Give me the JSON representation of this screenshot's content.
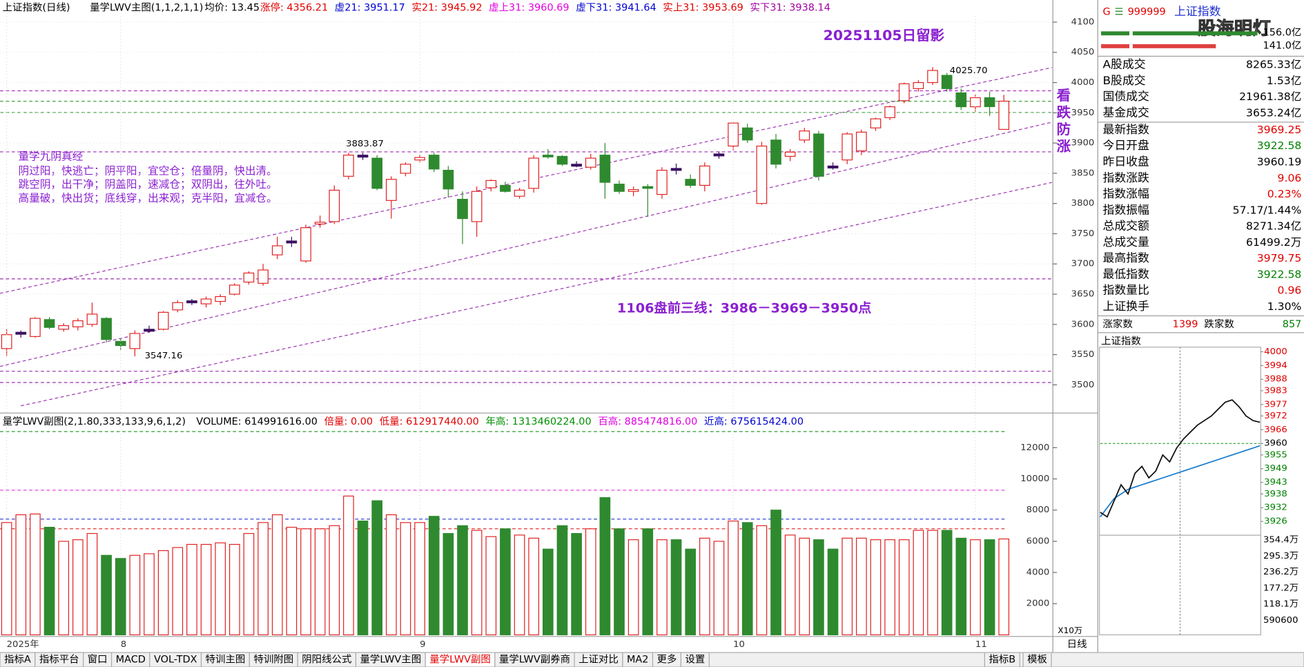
{
  "header": {
    "title": "上证指数(日线)",
    "indicator": "量学LWV主图(1,1,2,1,1)",
    "avg": "均价: 13.45",
    "items": [
      {
        "text": "涨停: 4356.21",
        "color": "#e00000"
      },
      {
        "text": "虚21: 3951.17",
        "color": "#0000d0"
      },
      {
        "text": "实21: 3945.92",
        "color": "#e00000"
      },
      {
        "text": "虚上31: 3960.69",
        "color": "#e000e0"
      },
      {
        "text": "虚下31: 3941.64",
        "color": "#0000d0"
      },
      {
        "text": "实上31: 3953.69",
        "color": "#e00000"
      },
      {
        "text": "实下31: 3938.14",
        "color": "#a000a0"
      }
    ]
  },
  "volume_header": {
    "indicator": "量学LWV副图(2,1.80,333,133,9,6,1,2)",
    "items": [
      {
        "text": "VOLUME: 614991616.00",
        "color": "#000000"
      },
      {
        "text": "倍量: 0.00",
        "color": "#e00000"
      },
      {
        "text": "低量: 612917440.00",
        "color": "#e00000"
      },
      {
        "text": "年高: 1313460224.00",
        "color": "#009000"
      },
      {
        "text": "百高: 885474816.00",
        "color": "#e000e0"
      },
      {
        "text": "近高: 675615424.00",
        "color": "#0000d0"
      }
    ]
  },
  "price_chart": {
    "type": "candlestick",
    "ylim": [
      3460,
      4110
    ],
    "yticks": [
      3500,
      3550,
      3600,
      3650,
      3700,
      3750,
      3800,
      3850,
      3900,
      3950,
      4000,
      4050,
      4100
    ],
    "up_color": "#e02020",
    "down_color": "#2f8a2f",
    "categories": [
      "2025年",
      null,
      null,
      null,
      null,
      null,
      null,
      null,
      "8",
      null,
      null,
      null,
      null,
      null,
      null,
      null,
      null,
      null,
      null,
      null,
      null,
      null,
      null,
      null,
      null,
      null,
      null,
      null,
      null,
      "9",
      null,
      null,
      null,
      null,
      null,
      null,
      null,
      null,
      null,
      null,
      null,
      null,
      null,
      null,
      null,
      null,
      null,
      null,
      null,
      null,
      null,
      "10",
      null,
      null,
      null,
      null,
      null,
      null,
      null,
      null,
      null,
      null,
      null,
      null,
      null,
      null,
      null,
      null,
      "11",
      null,
      null
    ],
    "candles": [
      [
        3560,
        3592,
        3548,
        3583
      ],
      [
        3585,
        3590,
        3578,
        3587
      ],
      [
        3580,
        3612,
        3578,
        3610
      ],
      [
        3608,
        3612,
        3592,
        3595
      ],
      [
        3592,
        3602,
        3588,
        3598
      ],
      [
        3596,
        3610,
        3590,
        3606
      ],
      [
        3600,
        3636,
        3596,
        3617
      ],
      [
        3610,
        3612,
        3570,
        3575
      ],
      [
        3572,
        3578,
        3558,
        3565
      ],
      [
        3560,
        3590,
        3547.16,
        3585
      ],
      [
        3590,
        3598,
        3586,
        3592
      ],
      [
        3592,
        3622,
        3590,
        3620
      ],
      [
        3624,
        3640,
        3620,
        3636
      ],
      [
        3638,
        3642,
        3632,
        3639
      ],
      [
        3634,
        3646,
        3628,
        3642
      ],
      [
        3638,
        3650,
        3632,
        3646
      ],
      [
        3650,
        3668,
        3648,
        3665
      ],
      [
        3670,
        3688,
        3666,
        3685
      ],
      [
        3668,
        3700,
        3664,
        3690
      ],
      [
        3715,
        3745,
        3708,
        3730
      ],
      [
        3736,
        3745,
        3728,
        3738
      ],
      [
        3705,
        3765,
        3702,
        3760
      ],
      [
        3766,
        3780,
        3760,
        3769
      ],
      [
        3770,
        3830,
        3766,
        3822
      ],
      [
        3845,
        3883.87,
        3840,
        3880
      ],
      [
        3880,
        3884,
        3872,
        3878
      ],
      [
        3875,
        3880,
        3822,
        3825
      ],
      [
        3805,
        3845,
        3775,
        3840
      ],
      [
        3850,
        3868,
        3845,
        3865
      ],
      [
        3872,
        3880,
        3868,
        3876
      ],
      [
        3880,
        3884,
        3852,
        3857
      ],
      [
        3855,
        3862,
        3810,
        3824
      ],
      [
        3807,
        3820,
        3733,
        3775
      ],
      [
        3770,
        3828,
        3745,
        3820
      ],
      [
        3826,
        3840,
        3820,
        3838
      ],
      [
        3830,
        3836,
        3818,
        3820
      ],
      [
        3812,
        3826,
        3808,
        3822
      ],
      [
        3825,
        3880,
        3818,
        3875
      ],
      [
        3880,
        3890,
        3874,
        3877
      ],
      [
        3878,
        3880,
        3862,
        3865
      ],
      [
        3865,
        3870,
        3860,
        3864
      ],
      [
        3860,
        3882,
        3856,
        3875
      ],
      [
        3880,
        3900,
        3808,
        3835
      ],
      [
        3832,
        3838,
        3816,
        3820
      ],
      [
        3820,
        3828,
        3812,
        3823
      ],
      [
        3828,
        3832,
        3778,
        3825
      ],
      [
        3815,
        3860,
        3808,
        3855
      ],
      [
        3858,
        3866,
        3848,
        3857
      ],
      [
        3840,
        3848,
        3826,
        3830
      ],
      [
        3830,
        3868,
        3820,
        3862
      ],
      [
        3880,
        3886,
        3874,
        3882
      ],
      [
        3895,
        3935,
        3888,
        3933
      ],
      [
        3925,
        3932,
        3900,
        3905
      ],
      [
        3800,
        3902,
        3798,
        3895
      ],
      [
        3905,
        3915,
        3858,
        3865
      ],
      [
        3878,
        3890,
        3870,
        3885
      ],
      [
        3905,
        3925,
        3900,
        3920
      ],
      [
        3915,
        3920,
        3838,
        3845
      ],
      [
        3862,
        3868,
        3856,
        3860
      ],
      [
        3872,
        3918,
        3865,
        3915
      ],
      [
        3887,
        3922,
        3880,
        3918
      ],
      [
        3925,
        3942,
        3920,
        3940
      ],
      [
        3942,
        3962,
        3938,
        3960
      ],
      [
        3970,
        4000,
        3966,
        3998
      ],
      [
        3990,
        4004,
        3985,
        4000
      ],
      [
        4000,
        4025.7,
        3996,
        4020
      ],
      [
        4012,
        4016,
        3985,
        3990
      ],
      [
        3983,
        3990,
        3955,
        3960
      ],
      [
        3960,
        3980,
        3952,
        3975
      ],
      [
        3975,
        3985,
        3945,
        3960.19
      ],
      [
        3922.58,
        3979.75,
        3922.58,
        3969.25
      ]
    ]
  },
  "volume_chart": {
    "type": "bar",
    "ylim": [
      0,
      13500
    ],
    "yticks": [
      2000,
      4000,
      6000,
      8000,
      10000,
      12000
    ],
    "unit": "X10万",
    "values": [
      7200,
      7700,
      7750,
      6900,
      6000,
      6100,
      6500,
      5100,
      4900,
      5100,
      5200,
      5400,
      5600,
      5800,
      5800,
      5900,
      5800,
      6500,
      7200,
      7700,
      6900,
      6800,
      6800,
      7000,
      8900,
      7300,
      8600,
      7700,
      7200,
      7200,
      7600,
      6500,
      7000,
      6700,
      6300,
      6800,
      6400,
      6200,
      5500,
      7000,
      6500,
      6800,
      8800,
      6800,
      6100,
      6800,
      6100,
      6100,
      5500,
      6200,
      6000,
      7300,
      7200,
      7000,
      8000,
      6400,
      6200,
      6100,
      5500,
      6200,
      6200,
      6100,
      6100,
      6100,
      6700,
      6700,
      6700,
      6200,
      6100,
      6100,
      6149.9
    ]
  },
  "annotations": {
    "date_note": "20251105日留影",
    "vertical_note": "看跌防涨",
    "high_label": "4025.70",
    "mid_label": "3883.87",
    "low_label": "3547.16",
    "verse_title": "量学九阴真经",
    "verse": [
      "阴过阳，快逃亡；阴平阳，宜空仓；倍量阴，快出清。",
      "跳空阴，出干净；阴盖阳，速减仓；双阴出，往外吐。",
      "高量破，快出货；底线穿，出来观；克半阳，宜减仓。"
    ],
    "plan": "1106盘前三线：3986－3969－3950点"
  },
  "tabs": [
    {
      "text": "指标A"
    },
    {
      "text": "指标平台"
    },
    {
      "text": "窗口"
    },
    {
      "text": "MACD"
    },
    {
      "text": "VOL-TDX"
    },
    {
      "text": "特训主图"
    },
    {
      "text": "特训附图"
    },
    {
      "text": "阴阳线公式"
    },
    {
      "text": "量学LWV主图"
    },
    {
      "text": "量学LWV副图",
      "active": true
    },
    {
      "text": "量学LWV副券商"
    },
    {
      "text": "上证对比"
    },
    {
      "text": "MA2"
    },
    {
      "text": "更多"
    },
    {
      "text": "设置"
    }
  ],
  "right_tabs": [
    "指标B",
    "模板"
  ],
  "period": "日线",
  "quote_panel": {
    "code": "999999",
    "name": "上证指数",
    "watermark": "股海明灯",
    "bar1": "156.0亿",
    "bar2": "141.0亿",
    "rows": [
      {
        "label": "A股成交",
        "value": "8265.33亿",
        "color": "#000000"
      },
      {
        "label": "B股成交",
        "value": "1.53亿",
        "color": "#000000"
      },
      {
        "label": "国债成交",
        "value": "21961.38亿",
        "color": "#000000"
      },
      {
        "label": "基金成交",
        "value": "3653.24亿",
        "color": "#000000"
      },
      {
        "label": "最新指数",
        "value": "3969.25",
        "color": "#e00000"
      },
      {
        "label": "今日开盘",
        "value": "3922.58",
        "color": "#008000"
      },
      {
        "label": "昨日收盘",
        "value": "3960.19",
        "color": "#000000"
      },
      {
        "label": "指数涨跌",
        "value": "9.06",
        "color": "#e00000"
      },
      {
        "label": "指数涨幅",
        "value": "0.23%",
        "color": "#e00000"
      },
      {
        "label": "指数振幅",
        "value": "57.17/1.44%",
        "color": "#000000"
      },
      {
        "label": "总成交额",
        "value": "8271.34亿",
        "color": "#000000"
      },
      {
        "label": "总成交量",
        "value": "61499.2万",
        "color": "#000000"
      },
      {
        "label": "最高指数",
        "value": "3979.75",
        "color": "#e00000"
      },
      {
        "label": "最低指数",
        "value": "3922.58",
        "color": "#008000"
      },
      {
        "label": "指数量比",
        "value": "0.96",
        "color": "#e00000"
      },
      {
        "label": "上证换手",
        "value": "1.30%",
        "color": "#000000"
      }
    ],
    "up_label": "涨家数",
    "up_count": "1399",
    "down_label": "跌家数",
    "down_count": "857"
  },
  "intraday": {
    "title": "上证指数",
    "type": "line",
    "ylim": [
      3920,
      4002
    ],
    "yticks": [
      3926,
      3932,
      3938,
      3943,
      3949,
      3955,
      3960,
      3966,
      3972,
      3977,
      3983,
      3988,
      3994,
      4000
    ],
    "base": 3960,
    "price": [
      3930,
      3928,
      3935,
      3942,
      3938,
      3947,
      3950,
      3945,
      3948,
      3955,
      3952,
      3958,
      3962,
      3965,
      3968,
      3970,
      3972,
      3975,
      3978,
      3979,
      3976,
      3972,
      3970,
      3969.25
    ],
    "average": [
      3928,
      3932,
      3936,
      3938,
      3940,
      3941,
      3942,
      3943,
      3944,
      3945,
      3946,
      3947,
      3948,
      3949,
      3950,
      3951,
      3952,
      3953,
      3954,
      3955,
      3956,
      3957,
      3958,
      3959
    ],
    "volume_ticks": [
      "354.4万",
      "295.3万",
      "236.2万",
      "177.2万",
      "118.1万",
      "590600"
    ]
  }
}
